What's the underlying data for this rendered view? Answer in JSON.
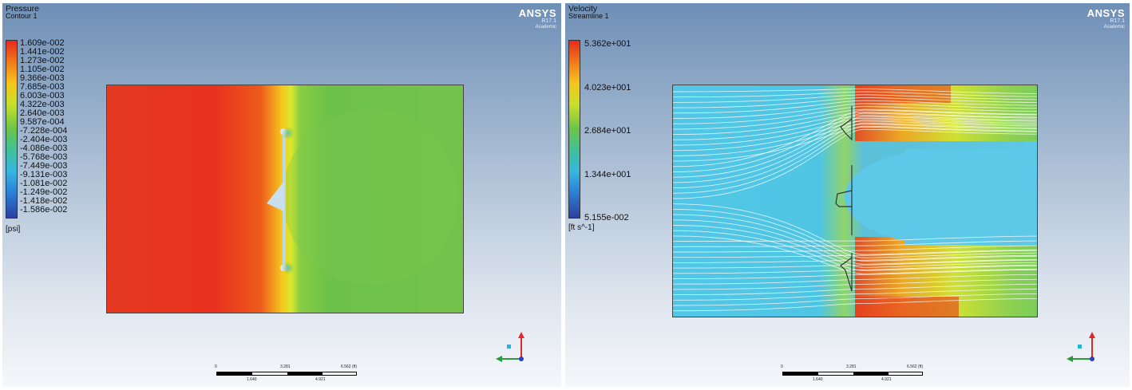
{
  "left_view": {
    "legend_title": "Pressure",
    "legend_subtitle": "Contour 1",
    "legend_values": [
      "1.609e-002",
      "1.441e-002",
      "1.273e-002",
      "1.105e-002",
      "9.366e-003",
      "7.685e-003",
      "6.003e-003",
      "4.322e-003",
      "2.640e-003",
      "9.587e-004",
      "-7.228e-004",
      "-2.404e-003",
      "-4.086e-003",
      "-5.768e-003",
      "-7.449e-003",
      "-9.131e-003",
      "-1.081e-002",
      "-1.249e-002",
      "-1.418e-002",
      "-1.586e-002"
    ],
    "unit": "[psi]",
    "logo": "ANSYS",
    "version": "R17.1",
    "edition": "Academic",
    "scale_labels": [
      "0",
      "3.281",
      "6.562 (ft)",
      "1.640",
      "4.921"
    ]
  },
  "right_view": {
    "legend_title": "Velocity",
    "legend_subtitle": "Streamline 1",
    "legend_values": [
      "5.362e+001",
      "4.023e+001",
      "2.684e+001",
      "1.344e+001",
      "5.155e-002"
    ],
    "unit": "[ft s^-1]",
    "logo": "ANSYS",
    "version": "R17.1",
    "edition": "Academic",
    "scale_labels": [
      "0",
      "3.281",
      "6.562 (ft)",
      "1.640",
      "4.921"
    ]
  },
  "colors": {
    "red": "#e8291d",
    "green": "#6cc448",
    "cyan": "#4cc3e8",
    "axis_x": "#2a9a3a",
    "axis_y": "#e02a2a",
    "axis_z": "#2e3fbf"
  }
}
